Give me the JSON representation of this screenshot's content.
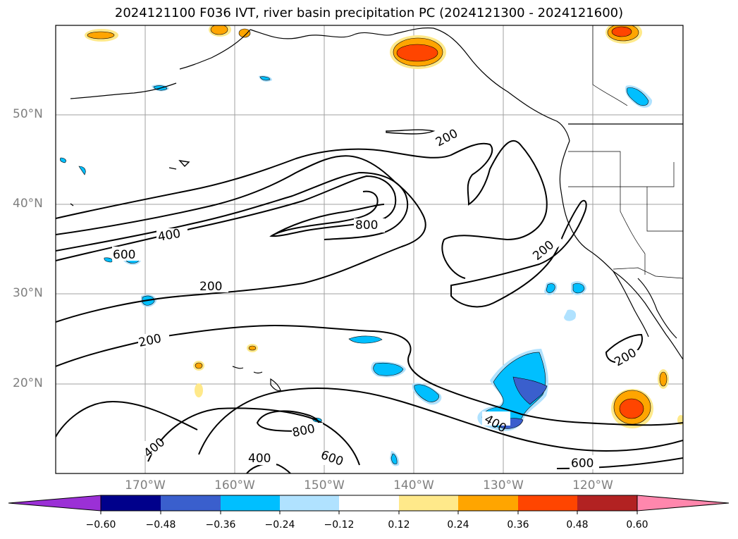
{
  "title": "2024121100 F036 IVT, river basin precipitation PC (2024121300 - 2024121600)",
  "map": {
    "projection": "PlateCarree",
    "lon_range": [
      -180,
      -110
    ],
    "lat_range": [
      10,
      60
    ],
    "lat_labels": [
      "50°N",
      "40°N",
      "30°N",
      "20°N"
    ],
    "lon_labels": [
      "170°W",
      "160°W",
      "150°W",
      "140°W",
      "130°W",
      "120°W"
    ],
    "gridlines": true,
    "ivt_contour_labels": [
      "200",
      "200",
      "200",
      "200",
      "200",
      "400",
      "400",
      "400",
      "600",
      "600",
      "600",
      "800",
      "800"
    ],
    "colors": {
      "coastline": "#000000",
      "contour": "#000000",
      "gridline": "#a0a0a0"
    }
  },
  "colorbar": {
    "ticks": [
      "−0.60",
      "−0.48",
      "−0.36",
      "−0.24",
      "−0.12",
      "0.12",
      "0.24",
      "0.36",
      "0.48",
      "0.60"
    ],
    "bins": [
      {
        "color": "#9b30d6"
      },
      {
        "color": "#00008b"
      },
      {
        "color": "#3a5fcd"
      },
      {
        "color": "#00bfff"
      },
      {
        "color": "#b0e2ff"
      },
      {
        "color": "#ffffff"
      },
      {
        "color": "#ffe98a"
      },
      {
        "color": "#ffa500"
      },
      {
        "color": "#ff4500"
      },
      {
        "color": "#b22222"
      },
      {
        "color": "#ff87ad"
      }
    ],
    "extend": "both"
  }
}
